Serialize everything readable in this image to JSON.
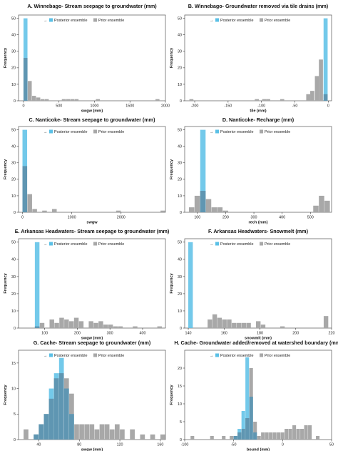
{
  "colors": {
    "posterior": "#5bc0e6",
    "prior": "#a8a8a8",
    "overlap": "#5d8aa3"
  },
  "legend": {
    "posterior": "Posterior ensemble",
    "prior": "Prior ensemble"
  },
  "chart_data": [
    {
      "type": "bar",
      "id": "A",
      "title": "A. Winnebago- Stream seepage to groundwater (mm)",
      "xlabel": "swgw (mm)",
      "ylabel": "Frequency",
      "xlim": [
        -70,
        2000
      ],
      "ylim": [
        0,
        52
      ],
      "xticks": [
        0,
        500,
        1000,
        1500,
        2000
      ],
      "yticks": [
        0,
        10,
        20,
        30,
        40,
        50
      ],
      "binwidth": 60,
      "prior": {
        "bins": [
          0,
          60,
          120,
          180,
          240,
          300,
          540,
          600,
          660,
          720,
          1020,
          1860
        ],
        "counts": [
          26,
          12,
          3,
          2,
          1,
          1,
          1,
          1,
          1,
          1,
          1,
          1
        ]
      },
      "posterior": {
        "bins": [
          0
        ],
        "counts": [
          50
        ]
      }
    },
    {
      "type": "bar",
      "id": "B",
      "title": "B. Winnebago- Groundwater removed via tile drains (mm)",
      "xlabel": "tile (mm)",
      "ylabel": "Frequency",
      "xlim": [
        -215,
        5
      ],
      "ylim": [
        0,
        52
      ],
      "xticks": [
        -200,
        -150,
        -100,
        -50,
        0
      ],
      "yticks": [
        0,
        10,
        20,
        30,
        40,
        50
      ],
      "binwidth": 6.5,
      "prior": {
        "bins": [
          -208,
          -110,
          -99,
          -93,
          -72,
          -33,
          -27,
          -20,
          -14,
          -7
        ],
        "counts": [
          1,
          1,
          1,
          1,
          1,
          4,
          6,
          15,
          25,
          4
        ]
      },
      "posterior": {
        "bins": [
          -7
        ],
        "counts": [
          50
        ]
      }
    },
    {
      "type": "bar",
      "id": "C",
      "title": "C. Nanticoke- Stream seepage to groundwater (mm)",
      "xlabel": "swgw",
      "ylabel": "Frequency",
      "xlim": [
        -80,
        2900
      ],
      "ylim": [
        0,
        52
      ],
      "xticks": [
        0,
        1000,
        2000
      ],
      "yticks": [
        0,
        10,
        20,
        30,
        40,
        50
      ],
      "binwidth": 100,
      "prior": {
        "bins": [
          0,
          100,
          200,
          400,
          600,
          1900,
          2800
        ],
        "counts": [
          28,
          11,
          2,
          1,
          2,
          1,
          1
        ]
      },
      "posterior": {
        "bins": [
          0
        ],
        "counts": [
          50
        ]
      }
    },
    {
      "type": "bar",
      "id": "D",
      "title": "D. Nanticoke- Recharge (mm)",
      "xlabel": "rech (mm)",
      "ylabel": "Frequency",
      "xlim": [
        55,
        575
      ],
      "ylim": [
        0,
        52
      ],
      "xticks": [
        100,
        200,
        300,
        400,
        500
      ],
      "yticks": [
        0,
        10,
        20,
        30,
        40,
        50
      ],
      "binwidth": 20,
      "prior": {
        "bins": [
          70,
          90,
          110,
          130,
          150,
          170,
          190,
          510,
          530,
          550
        ],
        "counts": [
          3,
          10,
          13,
          8,
          3,
          3,
          1,
          4,
          10,
          7
        ]
      },
      "posterior": {
        "bins": [
          110
        ],
        "counts": [
          50
        ]
      }
    },
    {
      "type": "bar",
      "id": "E",
      "title": "E. Arkansas Headwaters- Stream seepage to groundwater (mm)",
      "xlabel": "swgw (mm)",
      "ylabel": "Frequency",
      "xlim": [
        20,
        470
      ],
      "ylim": [
        0,
        52
      ],
      "xticks": [
        100,
        200,
        300,
        400
      ],
      "yticks": [
        0,
        10,
        20,
        30,
        40,
        50
      ],
      "binwidth": 15,
      "prior": {
        "bins": [
          70,
          85,
          115,
          130,
          145,
          160,
          175,
          190,
          205,
          235,
          250,
          265,
          280,
          295,
          310,
          325,
          370,
          445
        ],
        "counts": [
          1,
          3,
          5,
          3,
          6,
          5,
          4,
          6,
          4,
          4,
          3,
          4,
          2,
          2,
          1,
          1,
          1,
          1
        ]
      },
      "posterior": {
        "bins": [
          70
        ],
        "counts": [
          50
        ]
      }
    },
    {
      "type": "bar",
      "id": "F",
      "title": "F. Arkansas Headwaters- Snowmelt (mm)",
      "xlabel": "snowmlt (mm)",
      "ylabel": "Frequency",
      "xlim": [
        138,
        220
      ],
      "ylim": [
        0,
        52
      ],
      "xticks": [
        140,
        160,
        180,
        200,
        220
      ],
      "yticks": [
        0,
        10,
        20,
        30,
        40,
        50
      ],
      "binwidth": 2.7,
      "prior": {
        "bins": [
          150.8,
          153.5,
          156.2,
          158.9,
          161.6,
          164.3,
          167,
          169.7,
          172.4,
          177.8,
          180.5,
          191.3,
          215.6
        ],
        "counts": [
          5,
          8,
          6,
          5,
          5,
          3,
          3,
          3,
          3,
          4,
          2,
          1,
          7
        ]
      },
      "posterior": {
        "bins": [
          140
        ],
        "counts": [
          50
        ]
      }
    },
    {
      "type": "bar",
      "id": "G",
      "title": "G. Cache- Stream seepage to groundwater (mm)",
      "xlabel": "swgw (mm)",
      "ylabel": "Frequency",
      "xlim": [
        20,
        165
      ],
      "ylim": [
        0,
        17.5
      ],
      "xticks": [
        40,
        80,
        120,
        160
      ],
      "yticks": [
        0,
        5,
        10,
        15
      ],
      "binwidth": 5,
      "prior": {
        "bins": [
          25,
          35,
          40,
          45,
          50,
          55,
          60,
          65,
          70,
          75,
          80,
          85,
          90,
          95,
          100,
          105,
          110,
          115,
          120,
          130,
          140,
          150,
          160
        ],
        "counts": [
          2,
          1,
          3,
          5,
          8,
          12,
          13,
          12,
          9,
          3,
          3,
          3,
          3,
          2,
          3,
          3,
          2,
          3,
          2,
          2,
          1,
          1,
          1
        ]
      },
      "posterior": {
        "bins": [
          35,
          40,
          45,
          50,
          55,
          60,
          65,
          70
        ],
        "counts": [
          1,
          3,
          5,
          10,
          13,
          16,
          10,
          5
        ]
      }
    },
    {
      "type": "bar",
      "id": "H",
      "title": "H. Cache- Groundwater added/removed at watershed boundary (mm)",
      "xlabel": "bound (mm)",
      "ylabel": "Frequency",
      "xlim": [
        -100,
        50
      ],
      "ylim": [
        0,
        25
      ],
      "xticks": [
        -100,
        -50,
        0,
        50
      ],
      "yticks": [
        0,
        5,
        10,
        15,
        20
      ],
      "binwidth": 4,
      "prior": {
        "bins": [
          -94,
          -74,
          -62,
          -54,
          -50,
          -46,
          -42,
          -38,
          -34,
          -30,
          -26,
          -22,
          -18,
          -14,
          -10,
          -6,
          -2,
          2,
          6,
          10,
          14,
          18,
          22,
          26,
          34
        ],
        "counts": [
          1,
          1,
          1,
          1,
          1,
          2,
          3,
          6,
          20,
          5,
          1,
          2,
          2,
          2,
          2,
          2,
          2,
          3,
          3,
          4,
          3,
          3,
          4,
          4,
          1
        ]
      },
      "posterior": {
        "bins": [
          -50,
          -46,
          -42,
          -38,
          -34,
          -30
        ],
        "counts": [
          1,
          3,
          8,
          23,
          12,
          2
        ]
      }
    }
  ]
}
